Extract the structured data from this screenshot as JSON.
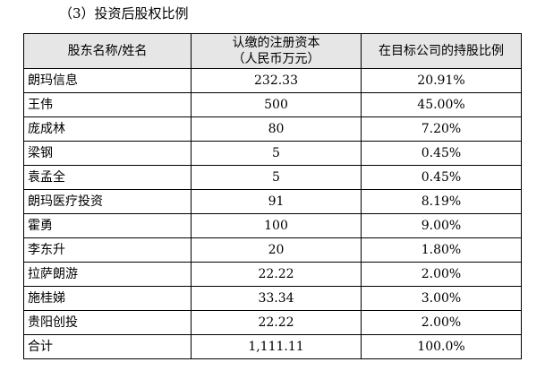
{
  "section": {
    "title": "（3）投资后股权比例"
  },
  "table": {
    "headers": {
      "name": "股东名称/姓名",
      "capital_line1": "认缴的注册资本",
      "capital_line2": "（人民币万元）",
      "ratio": "在目标公司的持股比例"
    },
    "rows": [
      {
        "name": "朗玛信息",
        "capital": "232.33",
        "ratio": "20.91%"
      },
      {
        "name": "王伟",
        "capital": "500",
        "ratio": "45.00%"
      },
      {
        "name": "庞成林",
        "capital": "80",
        "ratio": "7.20%"
      },
      {
        "name": "梁钢",
        "capital": "5",
        "ratio": "0.45%"
      },
      {
        "name": "袁孟全",
        "capital": "5",
        "ratio": "0.45%"
      },
      {
        "name": "朗玛医疗投资",
        "capital": "91",
        "ratio": "8.19%"
      },
      {
        "name": "霍勇",
        "capital": "100",
        "ratio": "9.00%"
      },
      {
        "name": "李东升",
        "capital": "20",
        "ratio": "1.80%"
      },
      {
        "name": "拉萨朗游",
        "capital": "22.22",
        "ratio": "2.00%"
      },
      {
        "name": "施桂娣",
        "capital": "33.34",
        "ratio": "3.00%"
      },
      {
        "name": "贵阳创投",
        "capital": "22.22",
        "ratio": "2.00%"
      },
      {
        "name": "合计",
        "capital": "1,111.11",
        "ratio": "100.0%"
      }
    ]
  }
}
